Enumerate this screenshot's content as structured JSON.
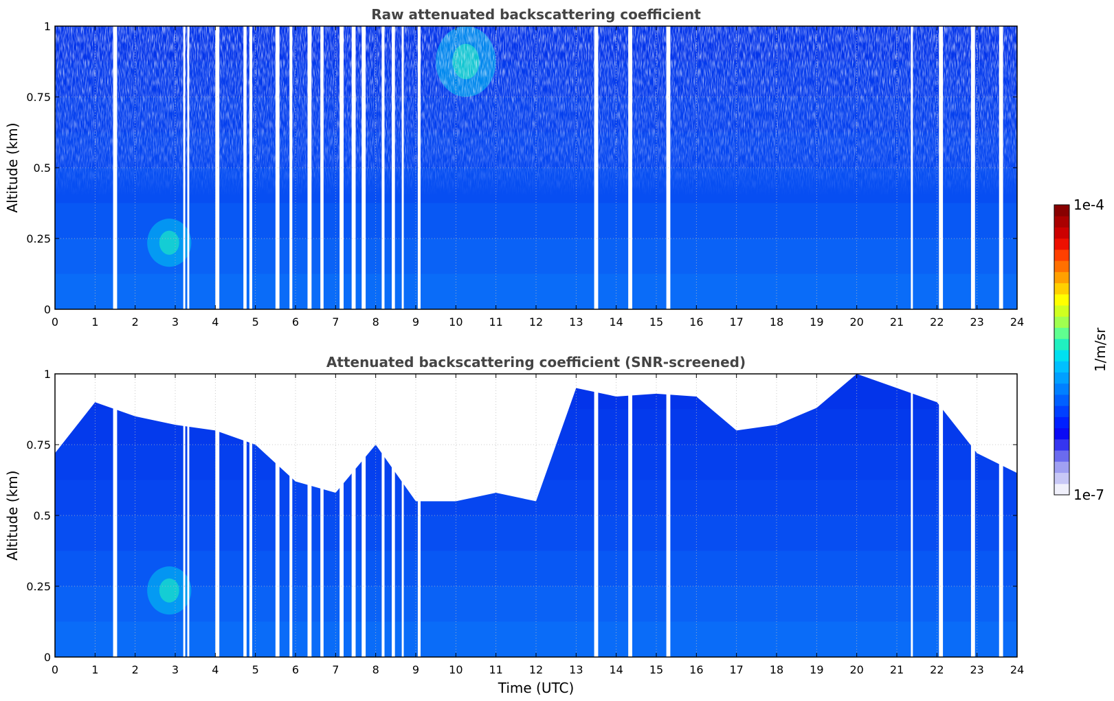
{
  "chart_data": [
    {
      "type": "heatmap",
      "title": "Raw attenuated backscattering coefficient",
      "xlabel": "",
      "ylabel": "Altitude (km)",
      "xlim": [
        0,
        24
      ],
      "ylim": [
        0,
        1
      ],
      "x_ticks": [
        "0",
        "1",
        "2",
        "3",
        "4",
        "5",
        "6",
        "7",
        "8",
        "9",
        "10",
        "11",
        "12",
        "13",
        "14",
        "15",
        "16",
        "17",
        "18",
        "19",
        "20",
        "21",
        "22",
        "23",
        "24"
      ],
      "y_ticks": [
        "0",
        "0.25",
        "0.5",
        "0.75",
        "1"
      ],
      "grid": true,
      "colorscale": "jet (log)",
      "values_note": "",
      "data_gaps_utc": [
        [
          1.45,
          1.55
        ],
        [
          3.2,
          3.25
        ],
        [
          3.3,
          3.35
        ],
        [
          4.0,
          4.1
        ],
        [
          4.7,
          4.78
        ],
        [
          4.85,
          4.92
        ],
        [
          5.5,
          5.6
        ],
        [
          5.85,
          5.92
        ],
        [
          6.3,
          6.4
        ],
        [
          6.62,
          6.7
        ],
        [
          7.1,
          7.2
        ],
        [
          7.4,
          7.5
        ],
        [
          7.65,
          7.75
        ],
        [
          8.15,
          8.22
        ],
        [
          8.4,
          8.48
        ],
        [
          8.65,
          8.7
        ],
        [
          9.05,
          9.12
        ],
        [
          13.45,
          13.55
        ],
        [
          14.3,
          14.4
        ],
        [
          15.25,
          15.35
        ],
        [
          21.35,
          21.4
        ],
        [
          22.05,
          22.15
        ],
        [
          22.85,
          22.95
        ],
        [
          23.55,
          23.65
        ]
      ],
      "features": [
        {
          "label": "",
          "x_range": [
            2.3,
            3.4
          ],
          "y_range": [
            0.15,
            0.32
          ],
          "level": "high"
        },
        {
          "label": "",
          "x_range": [
            9.5,
            11.0
          ],
          "y_range": [
            0.75,
            1.0
          ],
          "level": "high"
        }
      ]
    },
    {
      "type": "heatmap",
      "title": "Attenuated backscattering coefficient (SNR-screened)",
      "xlabel": "Time (UTC)",
      "ylabel": "Altitude (km)",
      "xlim": [
        0,
        24
      ],
      "ylim": [
        0,
        1
      ],
      "x_ticks": [
        "0",
        "1",
        "2",
        "3",
        "4",
        "5",
        "6",
        "7",
        "8",
        "9",
        "10",
        "11",
        "12",
        "13",
        "14",
        "15",
        "16",
        "17",
        "18",
        "19",
        "20",
        "21",
        "22",
        "23",
        "24"
      ],
      "y_ticks": [
        "0",
        "0.25",
        "0.5",
        "0.75",
        "1"
      ],
      "grid": true,
      "colorscale": "jet (log)",
      "screened_top_km": [
        [
          0,
          0.72
        ],
        [
          1,
          0.9
        ],
        [
          2,
          0.85
        ],
        [
          3,
          0.82
        ],
        [
          4,
          0.8
        ],
        [
          5,
          0.75
        ],
        [
          6,
          0.62
        ],
        [
          7,
          0.58
        ],
        [
          8,
          0.75
        ],
        [
          9,
          0.55
        ],
        [
          10,
          0.55
        ],
        [
          11,
          0.58
        ],
        [
          12,
          0.55
        ],
        [
          13,
          0.95
        ],
        [
          14,
          0.92
        ],
        [
          15,
          0.93
        ],
        [
          16,
          0.92
        ],
        [
          17,
          0.8
        ],
        [
          18,
          0.82
        ],
        [
          19,
          0.88
        ],
        [
          20,
          1.0
        ],
        [
          21,
          0.95
        ],
        [
          22,
          0.9
        ],
        [
          23,
          0.72
        ],
        [
          24,
          0.65
        ]
      ]
    }
  ],
  "colorbar": {
    "label": "1/m/sr",
    "max_label": "1e-4",
    "min_label": "1e-7",
    "colors": [
      "#f0f0fb",
      "#c8c8f6",
      "#a0a0f2",
      "#6b6bef",
      "#3535f0",
      "#0a0af5",
      "#0020ff",
      "#0040ff",
      "#0060ff",
      "#0080ff",
      "#00a0ff",
      "#00c0ff",
      "#00e0f0",
      "#20f0c0",
      "#60ff90",
      "#a0ff50",
      "#d0ff20",
      "#ffff00",
      "#ffd000",
      "#ffa000",
      "#ff7000",
      "#ff4000",
      "#ee1000",
      "#cc0000",
      "#aa0000",
      "#880000"
    ]
  }
}
